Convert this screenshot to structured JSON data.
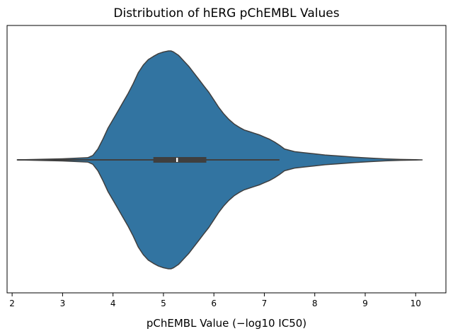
{
  "chart_data": {
    "type": "violin",
    "title": "Distribution of hERG pChEMBL Values",
    "xlabel": "pChEMBL Value (−log10 IC50)",
    "ylabel": "",
    "xlim": [
      1.9,
      10.6
    ],
    "xticks": [
      "2",
      "3",
      "4",
      "5",
      "6",
      "7",
      "8",
      "9",
      "10"
    ],
    "yticks": [],
    "grid": false,
    "color": "#3274a1",
    "edge_color": "#3f3f3f",
    "density_profile": {
      "x": [
        2.1,
        3.0,
        3.5,
        3.6,
        3.7,
        3.8,
        3.9,
        4.0,
        4.1,
        4.2,
        4.3,
        4.4,
        4.5,
        4.6,
        4.7,
        4.8,
        4.9,
        5.0,
        5.1,
        5.15,
        5.2,
        5.3,
        5.4,
        5.5,
        5.6,
        5.7,
        5.8,
        5.9,
        6.0,
        6.1,
        6.2,
        6.3,
        6.4,
        6.5,
        6.6,
        6.7,
        6.8,
        6.9,
        7.0,
        7.1,
        7.2,
        7.3,
        7.4,
        7.6,
        7.8,
        8.0,
        8.2,
        8.5,
        8.8,
        9.1,
        9.4,
        9.7,
        10.0,
        10.13
      ],
      "relative_width": [
        0.0,
        0.01,
        0.02,
        0.04,
        0.1,
        0.19,
        0.29,
        0.37,
        0.45,
        0.53,
        0.61,
        0.7,
        0.8,
        0.87,
        0.92,
        0.95,
        0.975,
        0.99,
        1.0,
        1.0,
        0.99,
        0.96,
        0.91,
        0.86,
        0.8,
        0.74,
        0.68,
        0.62,
        0.55,
        0.48,
        0.42,
        0.37,
        0.33,
        0.3,
        0.275,
        0.26,
        0.245,
        0.23,
        0.21,
        0.19,
        0.165,
        0.135,
        0.1,
        0.075,
        0.065,
        0.055,
        0.045,
        0.035,
        0.025,
        0.016,
        0.009,
        0.004,
        0.001,
        0.0
      ]
    },
    "box": {
      "min": 2.1,
      "q1": 4.8,
      "median": 5.27,
      "q3": 5.85,
      "whisker_high": 7.3,
      "max": 10.13
    }
  }
}
